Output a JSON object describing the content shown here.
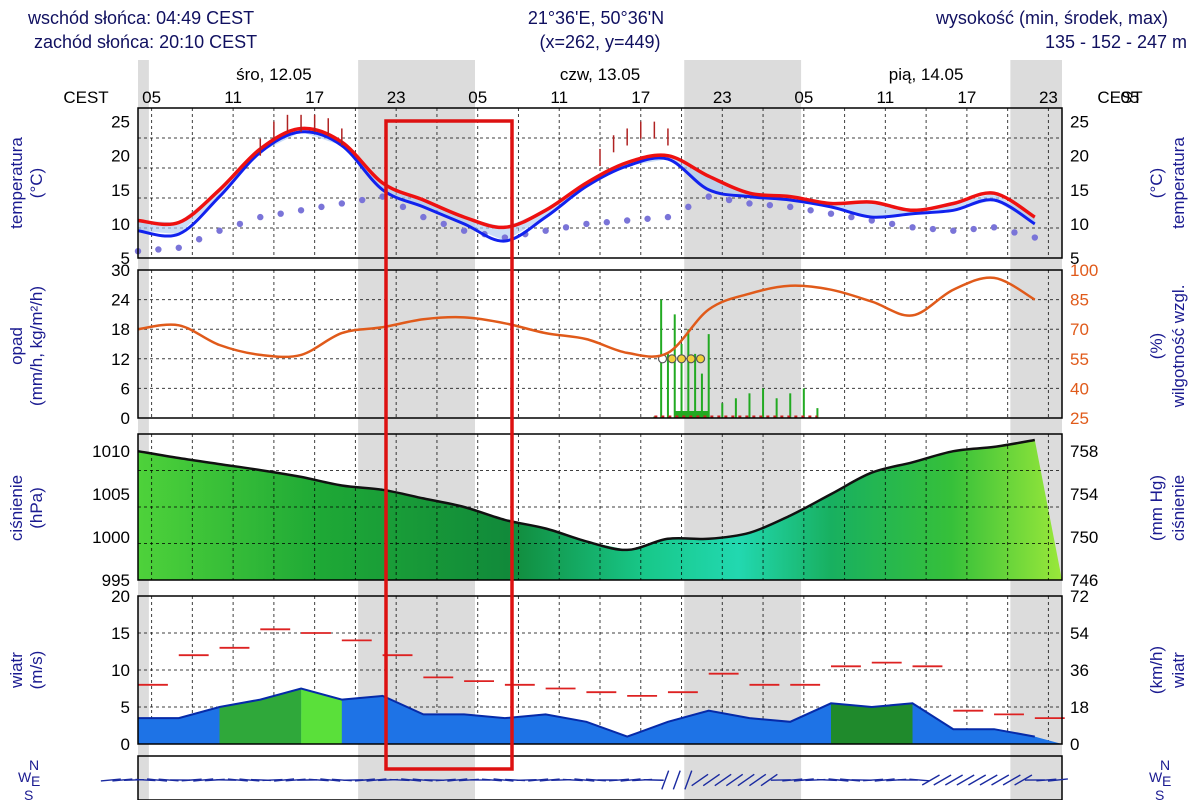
{
  "header": {
    "sunrise": "wschód słońca: 04:49 CEST",
    "sunset": "zachód słońca: 20:10 CEST",
    "coords": "21°36'E, 50°36'N",
    "grid": "(x=262,  y=449)",
    "elevation_label": "wysokość (min, środek, max)",
    "elevation_values": "135 - 152 - 247 m"
  },
  "timezone_label": "CEST",
  "days": [
    "śro, 12.05",
    "czw, 13.05",
    "pią, 14.05"
  ],
  "hour_ticks": [
    "05",
    "11",
    "17",
    "23",
    "05",
    "11",
    "17",
    "23",
    "05",
    "11",
    "17",
    "23",
    "05"
  ],
  "panels": {
    "temperature": {
      "left_label": [
        "temperatura",
        "(°C)"
      ],
      "right_label": [
        "(°C)",
        "temperatura"
      ],
      "left_ticks": [
        "25",
        "20",
        "15",
        "10",
        "5"
      ],
      "right_ticks": [
        "25",
        "20",
        "15",
        "10",
        "5"
      ]
    },
    "precip": {
      "left_label": [
        "opad",
        "(mm/h, kg/m²/h)"
      ],
      "right_label": [
        "(%)",
        "wilgotność wzgl."
      ],
      "left_ticks": [
        "30",
        "24",
        "18",
        "12",
        "6",
        "0"
      ],
      "right_ticks": [
        "100",
        "85",
        "70",
        "55",
        "40",
        "25"
      ]
    },
    "pressure": {
      "left_label": [
        "ciśnienie",
        "(hPa)"
      ],
      "right_label": [
        "(mm Hg)",
        "ciśnienie"
      ],
      "left_ticks": [
        "1010",
        "1005",
        "1000",
        "995"
      ],
      "right_ticks": [
        "758",
        "754",
        "750",
        "746"
      ]
    },
    "wind": {
      "left_label": [
        "wiatr",
        "(m/s)"
      ],
      "right_label": [
        "(km/h)",
        "wiatr"
      ],
      "left_ticks": [
        "20",
        "15",
        "10",
        "5",
        "0"
      ],
      "right_ticks": [
        "72",
        "54",
        "36",
        "18",
        "0"
      ]
    },
    "direction": {
      "compass": [
        "N",
        "W",
        "E",
        "S"
      ]
    }
  },
  "colors": {
    "temp_line": "#ee1111",
    "temp2_line": "#1122ee",
    "dew_dots": "#7a74d8",
    "humidity_line": "#e05a1a",
    "precip_bars": "#22aa22",
    "pressure_line": "#111111",
    "gust_marks": "#dd2222",
    "wind_fill": "#1e73e6",
    "night_band": "#dcdcdc",
    "highlight": "#dd1111"
  },
  "chart_data": [
    {
      "type": "line",
      "xlabel": "",
      "ylabel": "temperatura (°C)",
      "ylim": [
        5,
        27
      ],
      "x": [
        0,
        3,
        6,
        9,
        12,
        15,
        18,
        21,
        24,
        27,
        30,
        33,
        36,
        39,
        42,
        45,
        48,
        51,
        54,
        57,
        60,
        63,
        66
      ],
      "series": [
        {
          "values": [
            10.5,
            10.2,
            15,
            21,
            24,
            22,
            16,
            13.5,
            11,
            9.5,
            12,
            16,
            19,
            20,
            17,
            14.5,
            14,
            13,
            13.2,
            12,
            13,
            14.5,
            11
          ]
        },
        {
          "values": [
            9,
            8.5,
            14,
            20.5,
            23.5,
            21.5,
            15,
            12.5,
            10,
            7.5,
            11,
            15.5,
            18.5,
            19.5,
            15,
            14,
            13.5,
            12.5,
            11,
            11.5,
            12,
            13.5,
            10
          ]
        },
        {
          "values": [
            6,
            6.5,
            9,
            11,
            12,
            13,
            14,
            11,
            9,
            8,
            9,
            10,
            10.5,
            11,
            14,
            13,
            12.5,
            11.5,
            10.5,
            9.5,
            9,
            9.5,
            8
          ]
        }
      ]
    },
    {
      "type": "bar",
      "ylabel": "opad (mm/h, kg/m²/h)",
      "ylim": [
        0,
        30
      ],
      "x": [
        38,
        38.5,
        39,
        39.5,
        40,
        40.5,
        41,
        41.5,
        42,
        43,
        44,
        45,
        46,
        47,
        48,
        49,
        50
      ],
      "values": [
        0.3,
        24,
        13,
        21,
        15,
        18,
        13,
        9,
        17,
        3,
        4,
        5,
        6,
        4,
        5,
        6,
        2
      ]
    },
    {
      "type": "line",
      "ylabel": "wilgotność wzgl. (%)",
      "ylim": [
        25,
        100
      ],
      "x": [
        0,
        3,
        6,
        9,
        12,
        15,
        18,
        21,
        24,
        27,
        30,
        33,
        36,
        39,
        42,
        45,
        48,
        51,
        54,
        57,
        60,
        63,
        66
      ],
      "values": [
        70,
        72,
        62,
        57,
        57,
        68,
        71,
        75,
        76,
        73,
        68,
        65,
        58,
        58,
        80,
        88,
        92,
        90,
        84,
        77,
        90,
        96,
        85
      ]
    },
    {
      "type": "area",
      "ylabel": "ciśnienie (hPa)",
      "ylim": [
        995,
        1012
      ],
      "x": [
        0,
        3,
        6,
        9,
        12,
        15,
        18,
        21,
        24,
        27,
        30,
        33,
        36,
        39,
        42,
        45,
        48,
        51,
        54,
        57,
        60,
        63,
        66
      ],
      "values": [
        1010,
        1009.2,
        1008.5,
        1007.8,
        1007,
        1006,
        1005.5,
        1004.5,
        1003.5,
        1002,
        1001,
        999.5,
        998.5,
        999.8,
        999.8,
        1000.5,
        1002.5,
        1005,
        1007.5,
        1008.7,
        1010,
        1010.5,
        1011.3
      ]
    },
    {
      "type": "area",
      "ylabel": "wiatr (m/s)",
      "ylim": [
        0,
        20
      ],
      "x": [
        0,
        3,
        6,
        9,
        12,
        15,
        18,
        21,
        24,
        27,
        30,
        33,
        36,
        39,
        42,
        45,
        48,
        51,
        54,
        57,
        60,
        63,
        66
      ],
      "series": [
        {
          "values": [
            3.5,
            3.5,
            5,
            6,
            7.5,
            6,
            6.5,
            4,
            4,
            3.5,
            4,
            3,
            1,
            3,
            4.5,
            3.5,
            3,
            5.5,
            5,
            5.5,
            2,
            2,
            1
          ]
        },
        {
          "values": [
            8,
            12,
            13,
            15.5,
            15,
            14,
            12,
            9,
            8.5,
            8,
            7.5,
            7,
            6.5,
            7,
            9.5,
            8,
            8,
            10.5,
            11,
            10.5,
            4.5,
            4,
            3.5
          ]
        }
      ]
    }
  ]
}
